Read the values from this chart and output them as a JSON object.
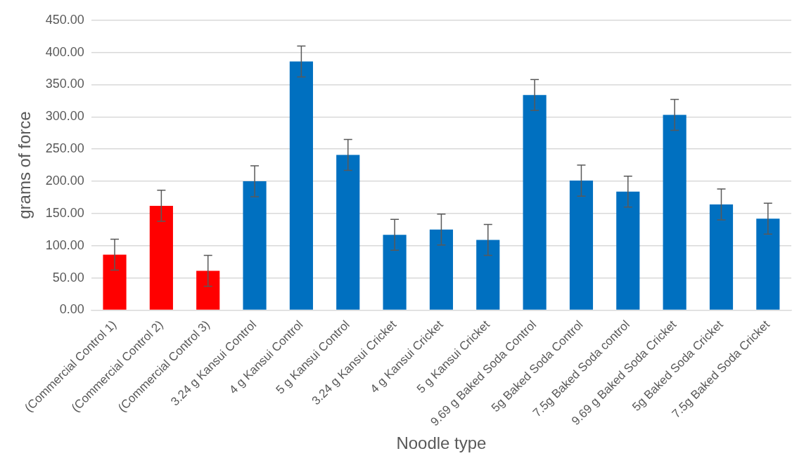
{
  "chart_data": {
    "type": "bar",
    "xlabel": "Noodle type",
    "ylabel": "grams of force",
    "categories": [
      "(Commercial Control 1)",
      "(Commercial Control 2)",
      "(Commercial Control 3)",
      "3.24 g Kansui Control",
      "4 g Kansui Control",
      "5 g Kansui Control",
      "3.24 g Kansui Cricket",
      "4 g Kansui Cricket",
      "5 g Kansui Cricket",
      "9.69 g Baked Soda Control",
      "5g Baked Soda Control",
      "7.5g Baked Soda control",
      "9.69 g Baked Soda Cricket",
      "5g Baked Soda Cricket",
      "7.5g Baked Soda Cricket"
    ],
    "values": [
      86,
      162,
      61,
      200,
      386,
      241,
      117,
      125,
      109,
      334,
      201,
      184,
      303,
      164,
      142
    ],
    "colors": [
      "#ff0000",
      "#ff0000",
      "#ff0000",
      "#0070c0",
      "#0070c0",
      "#0070c0",
      "#0070c0",
      "#0070c0",
      "#0070c0",
      "#0070c0",
      "#0070c0",
      "#0070c0",
      "#0070c0",
      "#0070c0",
      "#0070c0"
    ],
    "errors": [
      24,
      24,
      24,
      24,
      24,
      24,
      24,
      24,
      24,
      24,
      24,
      24,
      24,
      24,
      24
    ],
    "ylim": [
      0,
      450
    ],
    "yticks": [
      {
        "value": 0,
        "label": "0.00"
      },
      {
        "value": 50,
        "label": "50.00"
      },
      {
        "value": 100,
        "label": "100.00"
      },
      {
        "value": 150,
        "label": "150.00"
      },
      {
        "value": 200,
        "label": "200.00"
      },
      {
        "value": 250,
        "label": "250.00"
      },
      {
        "value": 300,
        "label": "300.00"
      },
      {
        "value": 350,
        "label": "350.00"
      },
      {
        "value": 400,
        "label": "400.00"
      },
      {
        "value": 450,
        "label": "450.00"
      }
    ],
    "grid": "y",
    "legend": false
  }
}
